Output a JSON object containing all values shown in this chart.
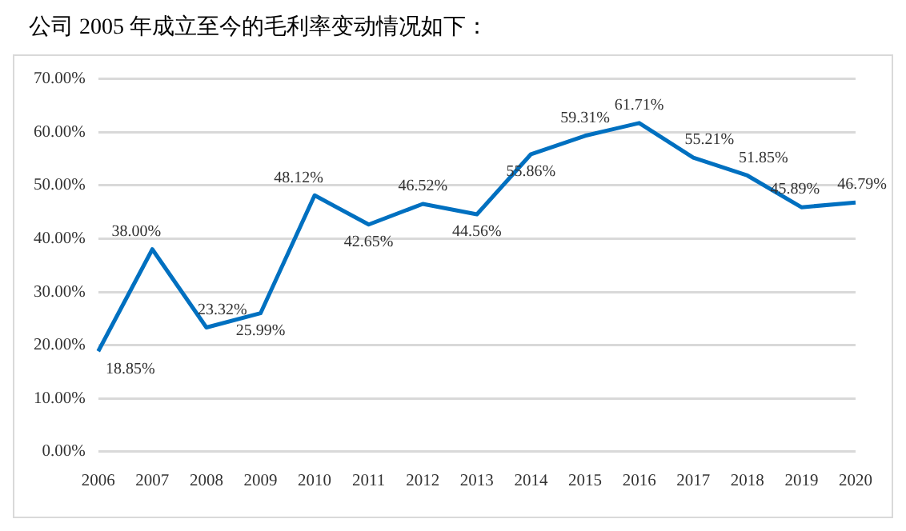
{
  "chart_data": {
    "type": "line",
    "title": "公司 2005 年成立至今的毛利率变动情况如下：",
    "categories": [
      "2006",
      "2007",
      "2008",
      "2009",
      "2010",
      "2011",
      "2012",
      "2013",
      "2014",
      "2015",
      "2016",
      "2017",
      "2018",
      "2019",
      "2020"
    ],
    "series": [
      {
        "color": "#0070c0",
        "values": [
          18.85,
          38.0,
          23.32,
          25.99,
          48.12,
          42.65,
          46.52,
          44.56,
          55.86,
          59.31,
          61.71,
          55.21,
          51.85,
          45.89,
          46.79
        ],
        "value_labels": [
          "18.85%",
          "38.00%",
          "23.32%",
          "25.99%",
          "48.12%",
          "42.65%",
          "46.52%",
          "44.56%",
          "55.86%",
          "59.31%",
          "61.71%",
          "55.21%",
          "51.85%",
          "45.89%",
          "46.79%"
        ]
      }
    ],
    "ylim": [
      0,
      70
    ],
    "yticks": [
      {
        "value": 0,
        "label": "0.00%"
      },
      {
        "value": 10,
        "label": "10.00%"
      },
      {
        "value": 20,
        "label": "20.00%"
      },
      {
        "value": 30,
        "label": "30.00%"
      },
      {
        "value": 40,
        "label": "40.00%"
      },
      {
        "value": 50,
        "label": "50.00%"
      },
      {
        "value": 60,
        "label": "60.00%"
      },
      {
        "value": 70,
        "label": "70.00%"
      }
    ],
    "grid": "y",
    "legend": false,
    "marker": "none",
    "line_style": "solid"
  }
}
